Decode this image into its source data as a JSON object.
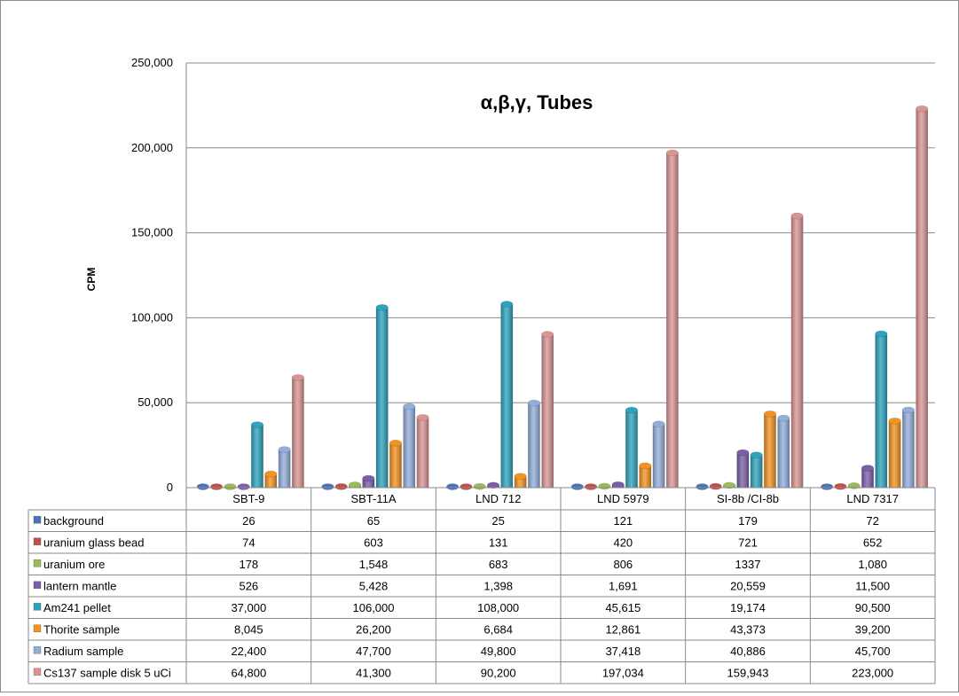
{
  "chart_data": {
    "type": "bar",
    "title": "α,β,γ, Tubes",
    "xlabel": "",
    "ylabel": "CPM",
    "ylim": [
      0,
      250000
    ],
    "yticks": [
      0,
      50000,
      100000,
      150000,
      200000,
      250000
    ],
    "ytick_labels": [
      "0",
      "50,000",
      "100,000",
      "150,000",
      "200,000",
      "250,000"
    ],
    "grid": true,
    "legend": "data-table-left",
    "categories": [
      "SBT-9",
      "SBT-11A",
      "LND 712",
      "LND 5979",
      "SI-8b /CI-8b",
      "LND 7317"
    ],
    "series": [
      {
        "name": "background",
        "color": "#4a74b8",
        "values": [
          26,
          65,
          25,
          121,
          179,
          72
        ],
        "labels": [
          "26",
          "65",
          "25",
          "121",
          "179",
          "72"
        ]
      },
      {
        "name": "uranium glass bead",
        "color": "#c0504d",
        "values": [
          74,
          603,
          131,
          420,
          721,
          652
        ],
        "labels": [
          "74",
          "603",
          "131",
          "420",
          "721",
          "652"
        ]
      },
      {
        "name": "uranium ore",
        "color": "#9bbb59",
        "values": [
          178,
          1548,
          683,
          806,
          1337,
          1080
        ],
        "labels": [
          "178",
          "1,548",
          "683",
          "806",
          "1337",
          "1,080"
        ]
      },
      {
        "name": "lantern mantle",
        "color": "#7a5fa8",
        "values": [
          526,
          5428,
          1398,
          1691,
          20559,
          11500
        ],
        "labels": [
          "526",
          "5,428",
          "1,398",
          "1,691",
          "20,559",
          "11,500"
        ]
      },
      {
        "name": "Am241 pellet",
        "color": "#2ea3bd",
        "values": [
          37000,
          106000,
          108000,
          45615,
          19174,
          90500
        ],
        "labels": [
          "37,000",
          "106,000",
          "108,000",
          "45,615",
          "19,174",
          "90,500"
        ]
      },
      {
        "name": "Thorite sample",
        "color": "#f39321",
        "values": [
          8045,
          26200,
          6684,
          12861,
          43373,
          39200
        ],
        "labels": [
          "8,045",
          "26,200",
          "6,684",
          "12,861",
          "43,373",
          "39,200"
        ]
      },
      {
        "name": "Radium sample",
        "color": "#93aedb",
        "values": [
          22400,
          47700,
          49800,
          37418,
          40886,
          45700
        ],
        "labels": [
          "22,400",
          "47,700",
          "49,800",
          "37,418",
          "40,886",
          "45,700"
        ]
      },
      {
        "name": "Cs137 sample disk  5 uCi",
        "color": "#d99594",
        "values": [
          64800,
          41300,
          90200,
          197034,
          159943,
          223000
        ],
        "labels": [
          "64,800",
          "41,300",
          "90,200",
          "197,034",
          "159,943",
          "223,000"
        ]
      }
    ]
  }
}
